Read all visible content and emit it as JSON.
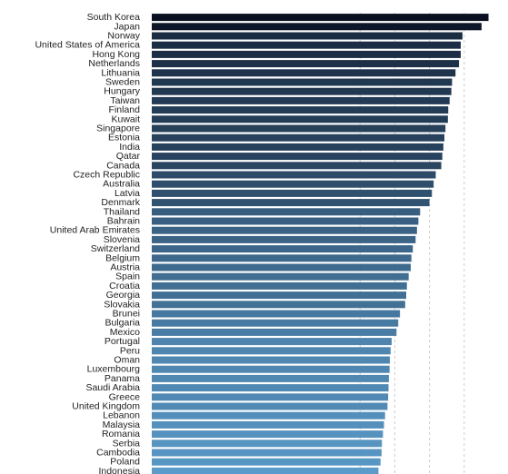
{
  "chart_data": {
    "type": "bar",
    "orientation": "horizontal",
    "title": "",
    "xlabel": "",
    "ylabel": "",
    "xlim": [
      0,
      100
    ],
    "grid": true,
    "legend": "none",
    "colors": {
      "low": "#5b9bc9",
      "high": "#0a1020",
      "grid": "#cccccc"
    },
    "categories": [
      "South Korea",
      "Japan",
      "Norway",
      "United States of America",
      "Hong Kong",
      "Netherlands",
      "Lithuania",
      "Sweden",
      "Hungary",
      "Taiwan",
      "Finland",
      "Kuwait",
      "Singapore",
      "Estonia",
      "India",
      "Qatar",
      "Canada",
      "Czech Republic",
      "Australia",
      "Latvia",
      "Denmark",
      "Thailand",
      "Bahrain",
      "United Arab Emirates",
      "Slovenia",
      "Switzerland",
      "Belgium",
      "Austria",
      "Spain",
      "Croatia",
      "Georgia",
      "Slovakia",
      "Brunei",
      "Bulgaria",
      "Mexico",
      "Portugal",
      "Peru",
      "Oman",
      "Luxembourg",
      "Panama",
      "Saudi Arabia",
      "Greece",
      "United Kingdom",
      "Lebanon",
      "Malaysia",
      "Romania",
      "Serbia",
      "Cambodia",
      "Poland",
      "Indonesia"
    ],
    "values": [
      97,
      95,
      89.5,
      89,
      89,
      88.5,
      87.5,
      86.5,
      86.3,
      85.8,
      85.4,
      85.3,
      84.6,
      84.3,
      84.0,
      83.7,
      83.4,
      81.8,
      81.2,
      80.7,
      80.0,
      77.3,
      76.8,
      76.4,
      76.0,
      75.2,
      74.8,
      74.6,
      74.0,
      73.5,
      73.3,
      73.0,
      71.5,
      71.0,
      70.5,
      69.1,
      68.8,
      68.6,
      68.5,
      68.3,
      68.2,
      68.1,
      67.9,
      67.2,
      66.9,
      66.6,
      66.3,
      66.2,
      65.9,
      65.3
    ]
  }
}
